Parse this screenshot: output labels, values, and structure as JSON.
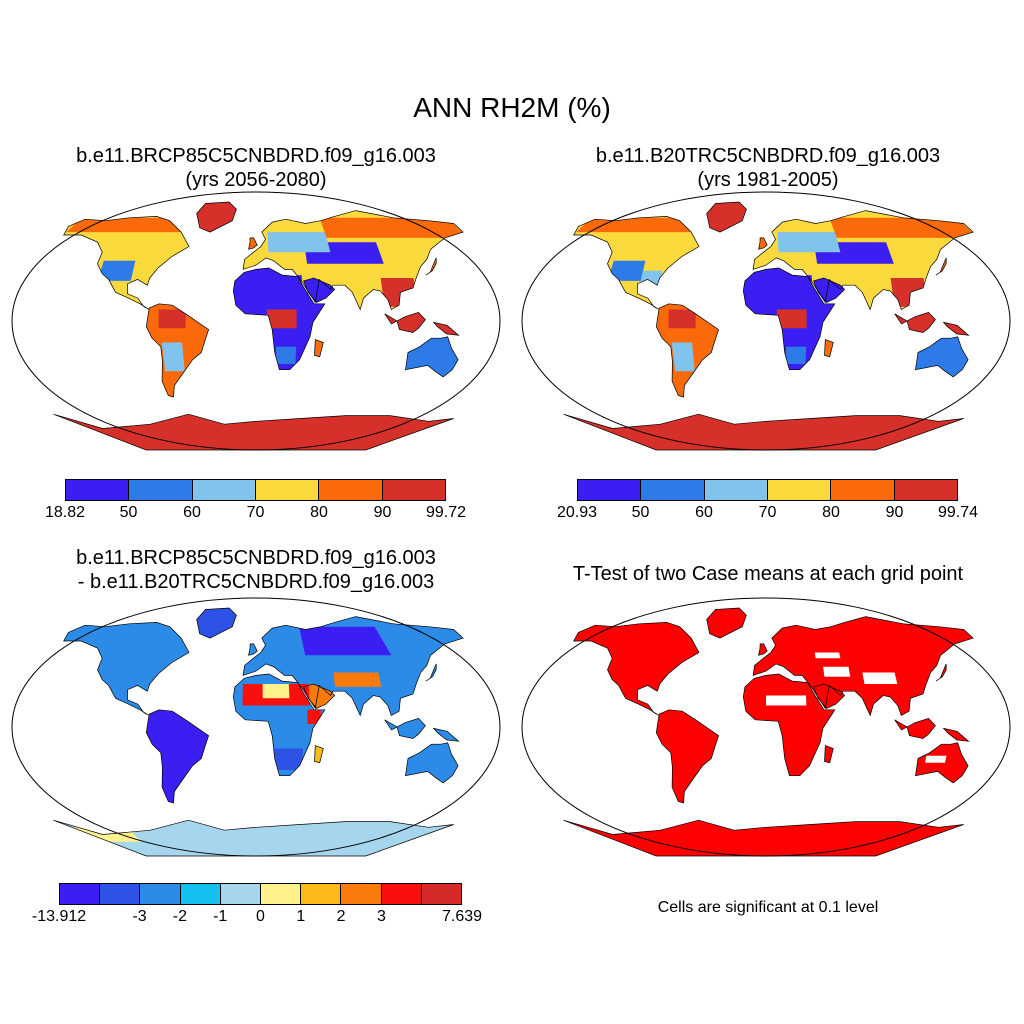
{
  "title": "ANN RH2M (%)",
  "panels": [
    {
      "title_line1": "b.e11.BRCP85C5CNBDRD.f09_g16.003",
      "title_line2": "(yrs 2056-2080)",
      "colorbar": {
        "colors": [
          "#3a1ef2",
          "#2e7be8",
          "#80c4ee",
          "#fad93c",
          "#fa6a0a",
          "#d6302a"
        ],
        "labels": [
          "18.82",
          "50",
          "60",
          "70",
          "80",
          "90",
          "99.72"
        ]
      }
    },
    {
      "title_line1": "b.e11.B20TRC5CNBDRD.f09_g16.003",
      "title_line2": "(yrs 1981-2005)",
      "colorbar": {
        "colors": [
          "#3a1ef2",
          "#2e7be8",
          "#80c4ee",
          "#fad93c",
          "#fa6a0a",
          "#d6302a"
        ],
        "labels": [
          "20.93",
          "50",
          "60",
          "70",
          "80",
          "90",
          "99.74"
        ]
      }
    },
    {
      "title_line1": "b.e11.BRCP85C5CNBDRD.f09_g16.003",
      "title_line2": "- b.e11.B20TRC5CNBDRD.f09_g16.003",
      "colorbar": {
        "colors": [
          "#3a1ef2",
          "#2f52e6",
          "#2d8be8",
          "#14c0f0",
          "#a6d6ee",
          "#fff28c",
          "#fbb91a",
          "#fb7a0e",
          "#fa0f0f",
          "#d62a2a"
        ],
        "labels": [
          "-13.912",
          "",
          "-3",
          "-2",
          "-1",
          "0",
          "1",
          "2",
          "3",
          "",
          "7.639"
        ]
      }
    },
    {
      "title_line1": "T-Test of two Case means at each grid point",
      "note": "Cells are significant at 0.1 level",
      "fill_color": "#ff0000"
    }
  ]
}
